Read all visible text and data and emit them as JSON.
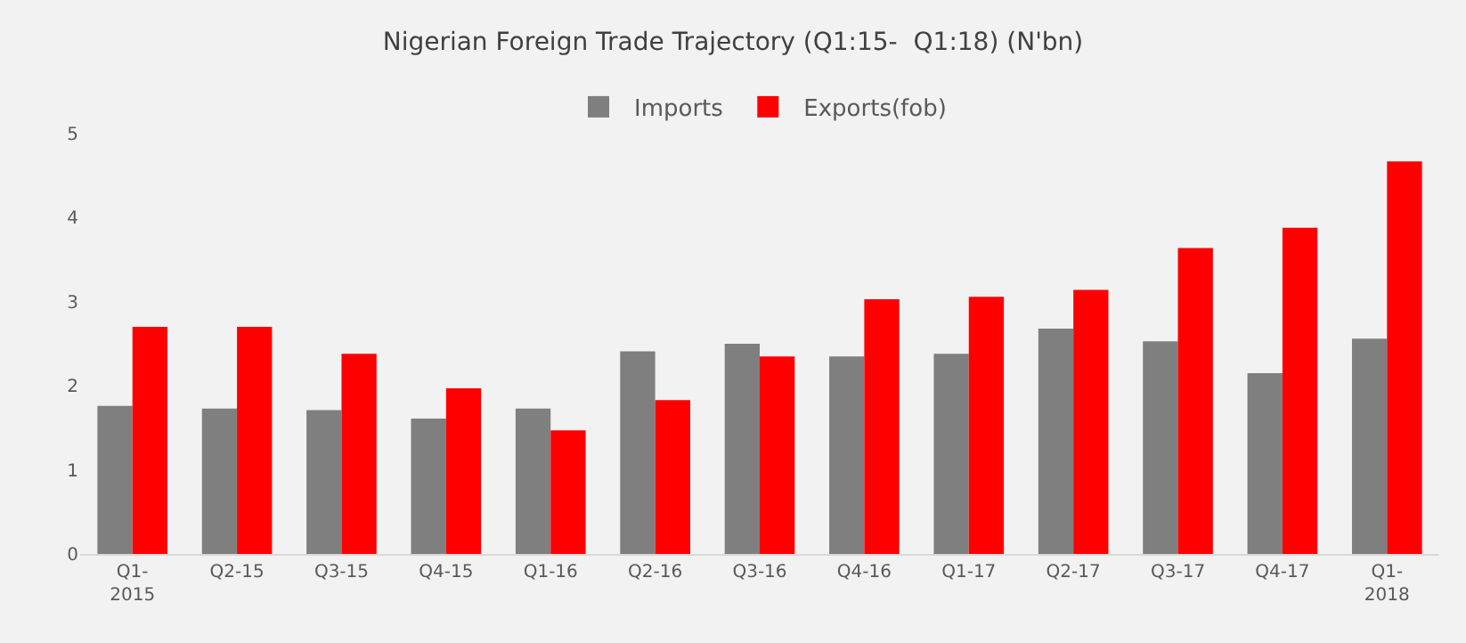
{
  "chart_data": {
    "type": "bar",
    "title": "Nigerian Foreign Trade Trajectory (Q1:15-  Q1:18) (N'bn)",
    "categories": [
      "Q1-\n2015",
      "Q2-15",
      "Q3-15",
      "Q4-15",
      "Q1-16",
      "Q2-16",
      "Q3-16",
      "Q4-16",
      "Q1-17",
      "Q2-17",
      "Q3-17",
      "Q4-17",
      "Q1-\n2018"
    ],
    "series": [
      {
        "name": "Imports",
        "color": "#7f7f7f",
        "values": [
          1.76,
          1.73,
          1.71,
          1.61,
          1.73,
          2.41,
          2.5,
          2.35,
          2.38,
          2.68,
          2.53,
          2.15,
          2.56
        ]
      },
      {
        "name": "Exports(fob)",
        "color": "#ff0000",
        "values": [
          2.7,
          2.7,
          2.38,
          1.97,
          1.47,
          1.83,
          2.35,
          3.03,
          3.06,
          3.14,
          3.64,
          3.88,
          4.67
        ]
      }
    ],
    "ylim": [
      0,
      5
    ],
    "yticks": [
      0,
      1,
      2,
      3,
      4,
      5
    ],
    "grid": false,
    "legend": "top"
  }
}
